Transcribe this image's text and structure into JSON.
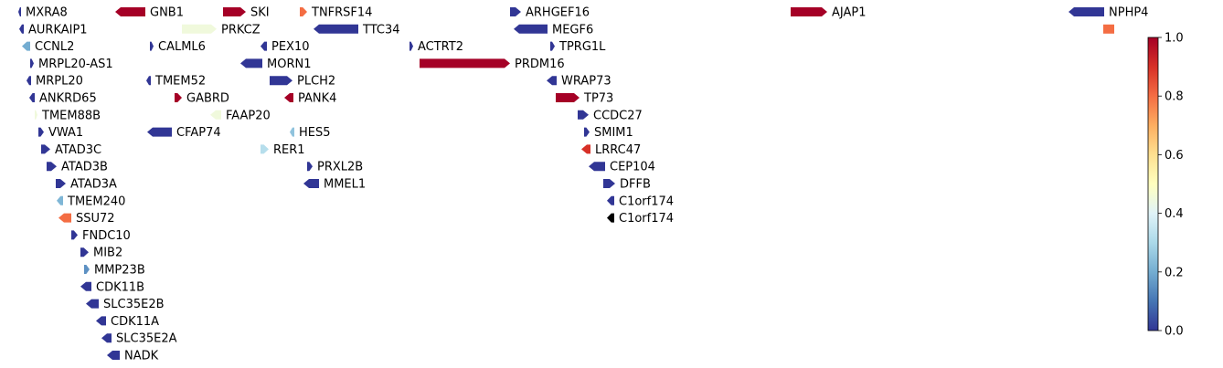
{
  "chart_data": {
    "type": "gene-track",
    "title": "",
    "xlabel": "",
    "ylabel": "",
    "colormap": "RdYlBu_r",
    "colorbar": {
      "vmin": 0.0,
      "vmax": 1.0,
      "ticks": [
        0.0,
        0.2,
        0.4,
        0.6,
        0.8,
        1.0
      ],
      "tick_labels": [
        "0.0",
        "0.2",
        "0.4",
        "0.6",
        "0.8",
        "1.0"
      ]
    },
    "genes": [
      {
        "label": "MXRA8",
        "start": 20,
        "end": 23,
        "strand": "-",
        "row": 0,
        "value": 0.0
      },
      {
        "label": "GNB1",
        "start": 126,
        "end": 159,
        "strand": "-",
        "row": 0,
        "value": 1.0
      },
      {
        "label": "SKI",
        "start": 244,
        "end": 269,
        "strand": "+",
        "row": 0,
        "value": 1.0
      },
      {
        "label": "TNFRSF14",
        "start": 328,
        "end": 336,
        "strand": "+",
        "row": 0,
        "value": 0.8
      },
      {
        "label": "ARHGEF16",
        "start": 558,
        "end": 570,
        "strand": "+",
        "row": 0,
        "value": 0.0
      },
      {
        "label": "AJAP1",
        "start": 865,
        "end": 905,
        "strand": "+",
        "row": 0,
        "value": 1.0
      },
      {
        "label": "NPHP4",
        "start": 1169,
        "end": 1208,
        "strand": "-",
        "row": 0,
        "value": 0.0
      },
      {
        "label": "AURKAIP1",
        "start": 21,
        "end": 26,
        "strand": "-",
        "row": 1,
        "value": 0.0
      },
      {
        "label": "PRKCZ",
        "start": 199,
        "end": 237,
        "strand": "+",
        "row": 1,
        "value": 0.45
      },
      {
        "label": "TTC34",
        "start": 343,
        "end": 392,
        "strand": "-",
        "row": 1,
        "value": 0.0
      },
      {
        "label": "MEGF6",
        "start": 562,
        "end": 599,
        "strand": "-",
        "row": 1,
        "value": 0.0
      },
      {
        "label": "",
        "start": 1207,
        "end": 1219,
        "strand": ".",
        "row": 1,
        "value": 0.8
      },
      {
        "label": "CCNL2",
        "start": 24,
        "end": 33,
        "strand": "-",
        "row": 2,
        "value": 0.2
      },
      {
        "label": "CALML6",
        "start": 164,
        "end": 168,
        "strand": "+",
        "row": 2,
        "value": 0.0
      },
      {
        "label": "PEX10",
        "start": 285,
        "end": 292,
        "strand": "-",
        "row": 2,
        "value": 0.0
      },
      {
        "label": "ACTRT2",
        "start": 448,
        "end": 452,
        "strand": "+",
        "row": 2,
        "value": 0.0
      },
      {
        "label": "TPRG1L",
        "start": 602,
        "end": 607,
        "strand": "+",
        "row": 2,
        "value": 0.0
      },
      {
        "label": "MRPL20-AS1",
        "start": 33,
        "end": 37,
        "strand": "+",
        "row": 3,
        "value": 0.0
      },
      {
        "label": "MORN1",
        "start": 263,
        "end": 287,
        "strand": "-",
        "row": 3,
        "value": 0.0
      },
      {
        "label": "PRDM16",
        "start": 459,
        "end": 558,
        "strand": "+",
        "row": 3,
        "value": 1.0
      },
      {
        "label": "MRPL20",
        "start": 29,
        "end": 34,
        "strand": "-",
        "row": 4,
        "value": 0.0
      },
      {
        "label": "TMEM52",
        "start": 160,
        "end": 165,
        "strand": "-",
        "row": 4,
        "value": 0.0
      },
      {
        "label": "PLCH2",
        "start": 295,
        "end": 320,
        "strand": "+",
        "row": 4,
        "value": 0.0
      },
      {
        "label": "WRAP73",
        "start": 598,
        "end": 609,
        "strand": "-",
        "row": 4,
        "value": 0.0
      },
      {
        "label": "ANKRD65",
        "start": 32,
        "end": 38,
        "strand": "-",
        "row": 5,
        "value": 0.0
      },
      {
        "label": "GABRD",
        "start": 191,
        "end": 199,
        "strand": "+",
        "row": 5,
        "value": 1.0
      },
      {
        "label": "PANK4",
        "start": 311,
        "end": 321,
        "strand": "-",
        "row": 5,
        "value": 1.0
      },
      {
        "label": "TP73",
        "start": 608,
        "end": 634,
        "strand": "+",
        "row": 5,
        "value": 1.0
      },
      {
        "label": "TMEM88B",
        "start": 38,
        "end": 41,
        "strand": "+",
        "row": 6,
        "value": 0.45
      },
      {
        "label": "FAAP20",
        "start": 230,
        "end": 242,
        "strand": "-",
        "row": 6,
        "value": 0.45
      },
      {
        "label": "CCDC27",
        "start": 632,
        "end": 644,
        "strand": "+",
        "row": 6,
        "value": 0.0
      },
      {
        "label": "VWA1",
        "start": 42,
        "end": 48,
        "strand": "+",
        "row": 7,
        "value": 0.0
      },
      {
        "label": "CFAP74",
        "start": 161,
        "end": 188,
        "strand": "-",
        "row": 7,
        "value": 0.0
      },
      {
        "label": "HES5",
        "start": 317,
        "end": 322,
        "strand": "-",
        "row": 7,
        "value": 0.25
      },
      {
        "label": "SMIM1",
        "start": 639,
        "end": 645,
        "strand": "+",
        "row": 7,
        "value": 0.0
      },
      {
        "label": "ATAD3C",
        "start": 45,
        "end": 55,
        "strand": "+",
        "row": 8,
        "value": 0.0
      },
      {
        "label": "RER1",
        "start": 285,
        "end": 294,
        "strand": "+",
        "row": 8,
        "value": 0.32
      },
      {
        "label": "LRRC47",
        "start": 636,
        "end": 646,
        "strand": "-",
        "row": 8,
        "value": 0.9
      },
      {
        "label": "ATAD3B",
        "start": 51,
        "end": 62,
        "strand": "+",
        "row": 9,
        "value": 0.0
      },
      {
        "label": "PRXL2B",
        "start": 336,
        "end": 342,
        "strand": "+",
        "row": 9,
        "value": 0.0
      },
      {
        "label": "CEP104",
        "start": 644,
        "end": 662,
        "strand": "-",
        "row": 9,
        "value": 0.0
      },
      {
        "label": "ATAD3A",
        "start": 61,
        "end": 72,
        "strand": "+",
        "row": 10,
        "value": 0.0
      },
      {
        "label": "MMEL1",
        "start": 332,
        "end": 349,
        "strand": "-",
        "row": 10,
        "value": 0.0
      },
      {
        "label": "DFFB",
        "start": 660,
        "end": 673,
        "strand": "+",
        "row": 10,
        "value": 0.0
      },
      {
        "label": "TMEM240",
        "start": 62,
        "end": 69,
        "strand": "-",
        "row": 11,
        "value": 0.22
      },
      {
        "label": "C1orf174",
        "start": 664,
        "end": 672,
        "strand": "-",
        "row": 11,
        "value": 0.0
      },
      {
        "label": "SSU72",
        "start": 64,
        "end": 78,
        "strand": "-",
        "row": 12,
        "value": 0.8
      },
      {
        "label": "C1orf174",
        "start": 664,
        "end": 672,
        "strand": "-",
        "row": 12,
        "value": "black"
      },
      {
        "label": "FNDC10",
        "start": 78,
        "end": 85,
        "strand": "+",
        "row": 13,
        "value": 0.0
      },
      {
        "label": "MIB2",
        "start": 88,
        "end": 97,
        "strand": "+",
        "row": 14,
        "value": 0.0
      },
      {
        "label": "MMP23B",
        "start": 92,
        "end": 98,
        "strand": "+",
        "row": 15,
        "value": 0.15
      },
      {
        "label": "CDK11B",
        "start": 88,
        "end": 100,
        "strand": "-",
        "row": 16,
        "value": 0.0
      },
      {
        "label": "SLC35E2B",
        "start": 94,
        "end": 108,
        "strand": "-",
        "row": 17,
        "value": 0.0
      },
      {
        "label": "CDK11A",
        "start": 105,
        "end": 116,
        "strand": "-",
        "row": 18,
        "value": 0.0
      },
      {
        "label": "SLC35E2A",
        "start": 111,
        "end": 122,
        "strand": "-",
        "row": 19,
        "value": 0.0
      },
      {
        "label": "NADK",
        "start": 117,
        "end": 131,
        "strand": "-",
        "row": 20,
        "value": 0.0
      }
    ]
  }
}
